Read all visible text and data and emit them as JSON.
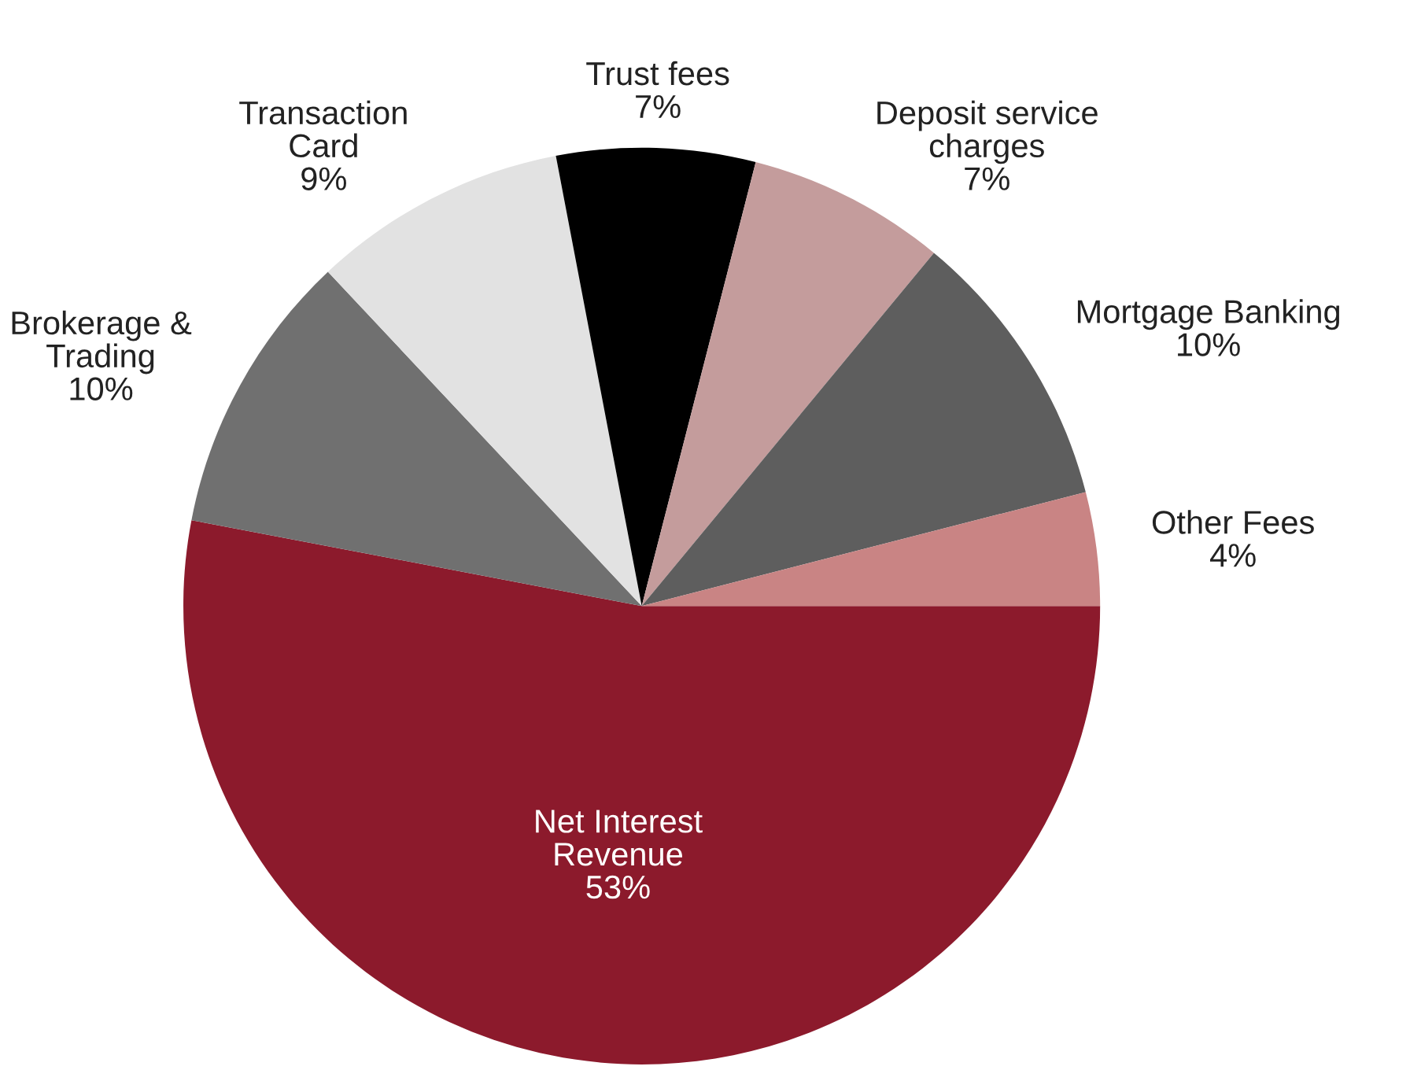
{
  "chart_data": {
    "type": "pie",
    "categories": [
      "Net Interest\nRevenue",
      "Brokerage &\nTrading",
      "Transaction\nCard",
      "Trust fees",
      "Deposit service\ncharges",
      "Mortgage Banking",
      "Other Fees"
    ],
    "values": [
      53,
      10,
      9,
      7,
      7,
      10,
      4
    ],
    "value_labels": [
      "53%",
      "10%",
      "9%",
      "7%",
      "7%",
      "10%",
      "4%"
    ],
    "colors": [
      "#8c1a2c",
      "#707070",
      "#e2e2e2",
      "#000000",
      "#c49c9c",
      "#5e5e5e",
      "#c98484"
    ],
    "legend": false
  }
}
